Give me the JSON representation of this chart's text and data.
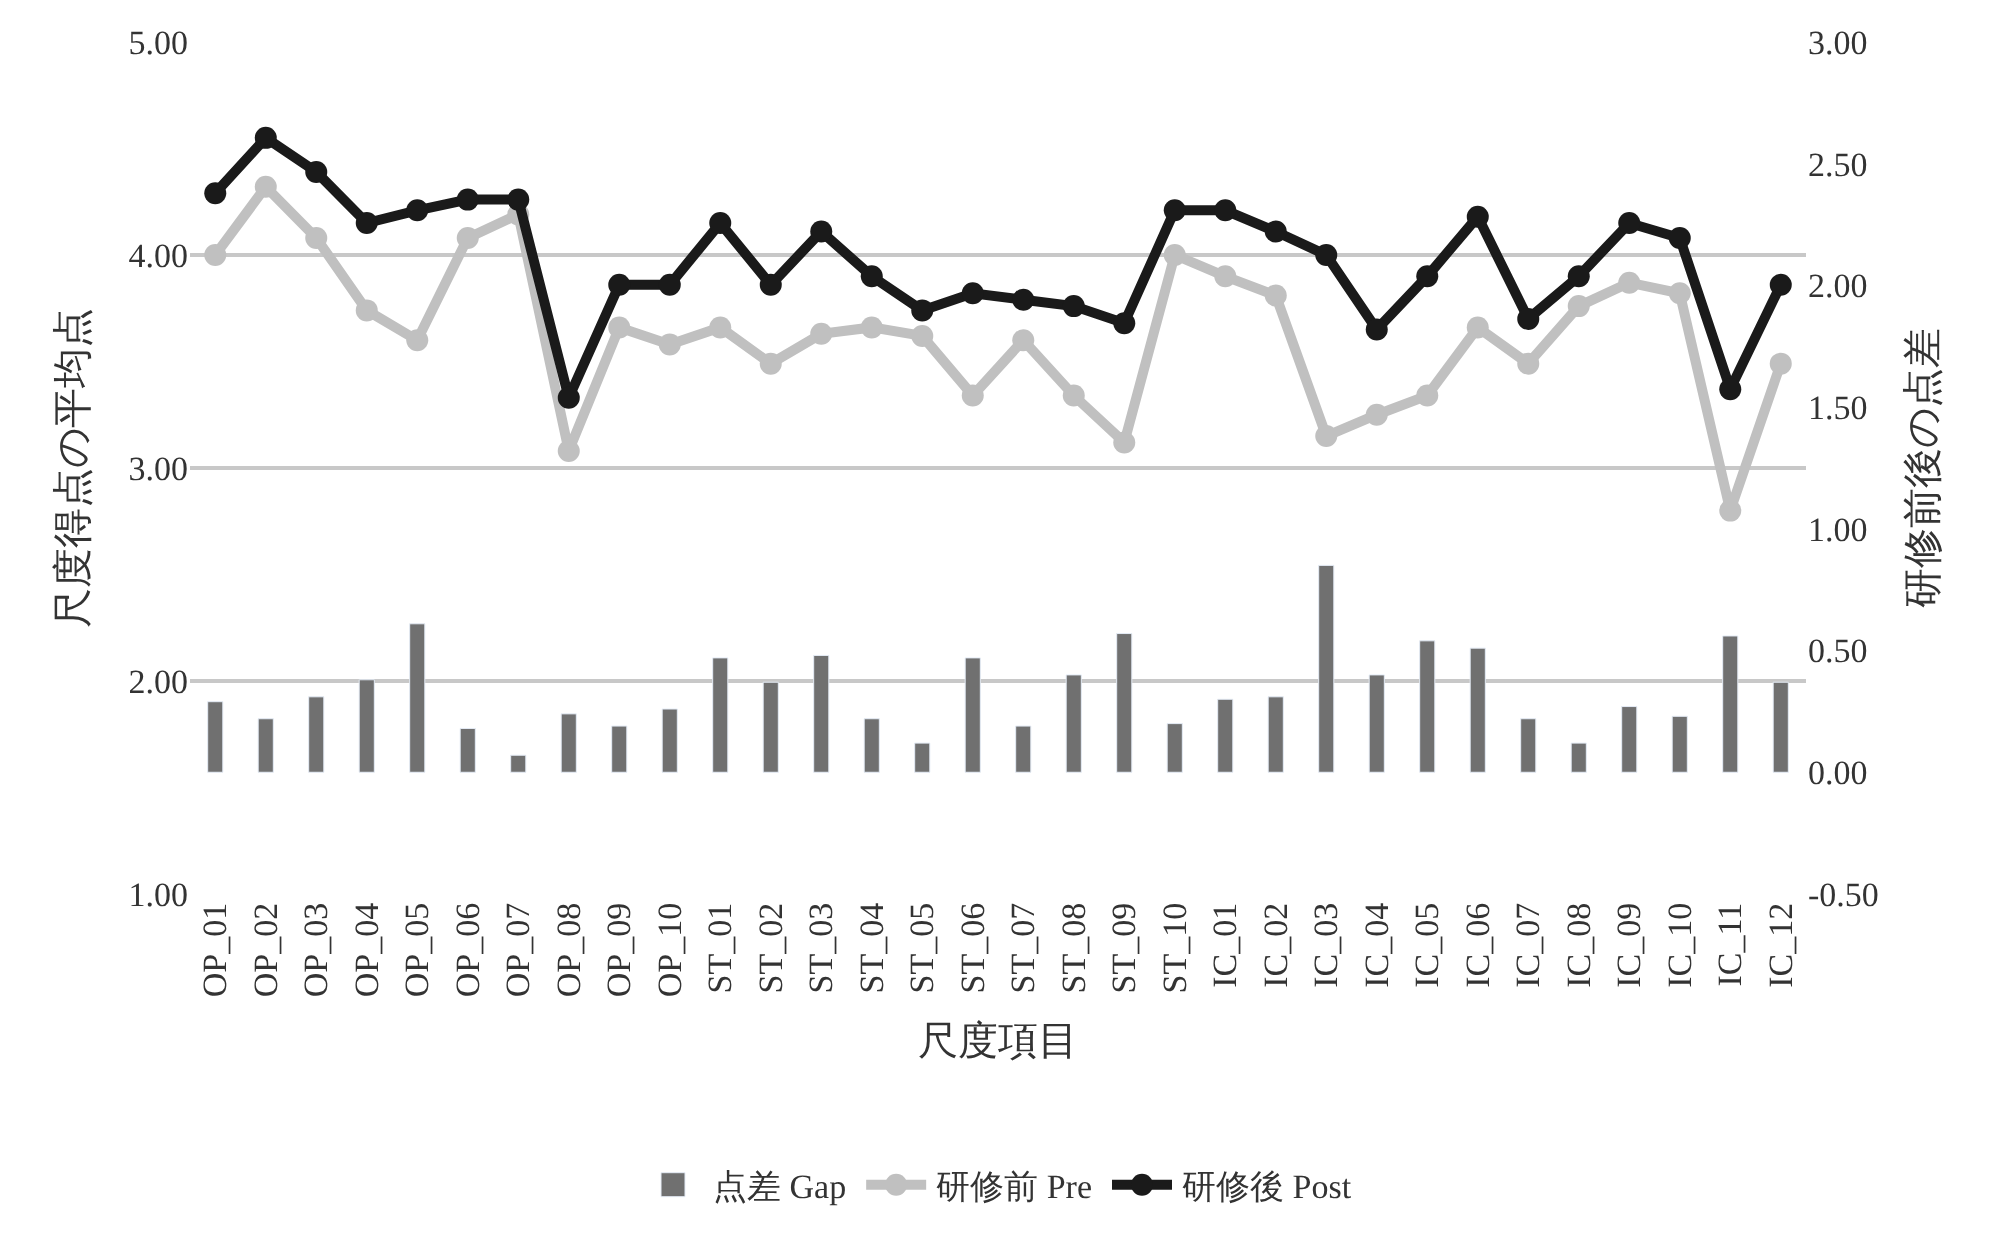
{
  "chart_data": {
    "type": "line",
    "xlabel": "尺度項目",
    "ylabel": "尺度得点の平均点",
    "y2label": "研修前後の点差",
    "categories": [
      "OP_01",
      "OP_02",
      "OP_03",
      "OP_04",
      "OP_05",
      "OP_06",
      "OP_07",
      "OP_08",
      "OP_09",
      "OP_10",
      "ST_01",
      "ST_02",
      "ST_03",
      "ST_04",
      "ST_05",
      "ST_06",
      "ST_07",
      "ST_08",
      "ST_09",
      "ST_10",
      "IC_01",
      "IC_02",
      "IC_03",
      "IC_04",
      "IC_05",
      "IC_06",
      "IC_07",
      "IC_08",
      "IC_09",
      "IC_10",
      "IC_11",
      "IC_12"
    ],
    "series": [
      {
        "name": "点差 Gap",
        "type": "bar",
        "axis": "y2",
        "color": "#707070",
        "values": [
          0.29,
          0.22,
          0.31,
          0.38,
          0.61,
          0.18,
          0.07,
          0.24,
          0.19,
          0.26,
          0.47,
          0.37,
          0.48,
          0.22,
          0.12,
          0.47,
          0.19,
          0.4,
          0.57,
          0.2,
          0.3,
          0.31,
          0.85,
          0.4,
          0.54,
          0.51,
          0.22,
          0.12,
          0.27,
          0.23,
          0.56,
          0.37
        ]
      },
      {
        "name": "研修前 Pre",
        "color": "#c0c0c0",
        "values": [
          4.0,
          4.32,
          4.08,
          3.74,
          3.6,
          4.08,
          4.19,
          3.08,
          3.66,
          3.58,
          3.66,
          3.49,
          3.63,
          3.66,
          3.62,
          3.34,
          3.6,
          3.34,
          3.12,
          4.0,
          3.9,
          3.81,
          3.15,
          3.25,
          3.34,
          3.66,
          3.49,
          3.76,
          3.87,
          3.82,
          2.8,
          3.49
        ]
      },
      {
        "name": "研修後 Post",
        "color": "#1a1a1a",
        "values": [
          4.29,
          4.55,
          4.39,
          4.15,
          4.21,
          4.26,
          4.26,
          3.33,
          3.86,
          3.86,
          4.15,
          3.86,
          4.11,
          3.9,
          3.74,
          3.82,
          3.79,
          3.76,
          3.68,
          4.21,
          4.21,
          4.11,
          4.0,
          3.65,
          3.9,
          4.18,
          3.7,
          3.9,
          4.15,
          4.08,
          3.37,
          3.86
        ]
      }
    ],
    "ylim": [
      1,
      5
    ],
    "yticks": [
      {
        "value": 1,
        "label": "1.00"
      },
      {
        "value": 2,
        "label": "2.00"
      },
      {
        "value": 3,
        "label": "3.00"
      },
      {
        "value": 4,
        "label": "4.00"
      },
      {
        "value": 5,
        "label": "5.00"
      }
    ],
    "y2lim": [
      -0.5,
      3
    ],
    "y2ticks": [
      {
        "value": -0.5,
        "label": "-0.50"
      },
      {
        "value": 0,
        "label": "0.00"
      },
      {
        "value": 0.5,
        "label": "0.50"
      },
      {
        "value": 1,
        "label": "1.00"
      },
      {
        "value": 1.5,
        "label": "1.50"
      },
      {
        "value": 2,
        "label": "2.00"
      },
      {
        "value": 2.5,
        "label": "2.50"
      },
      {
        "value": 3,
        "label": "3.00"
      }
    ],
    "grid": "y",
    "legend": "bottom",
    "marker": "circle",
    "line_style": "solid"
  }
}
